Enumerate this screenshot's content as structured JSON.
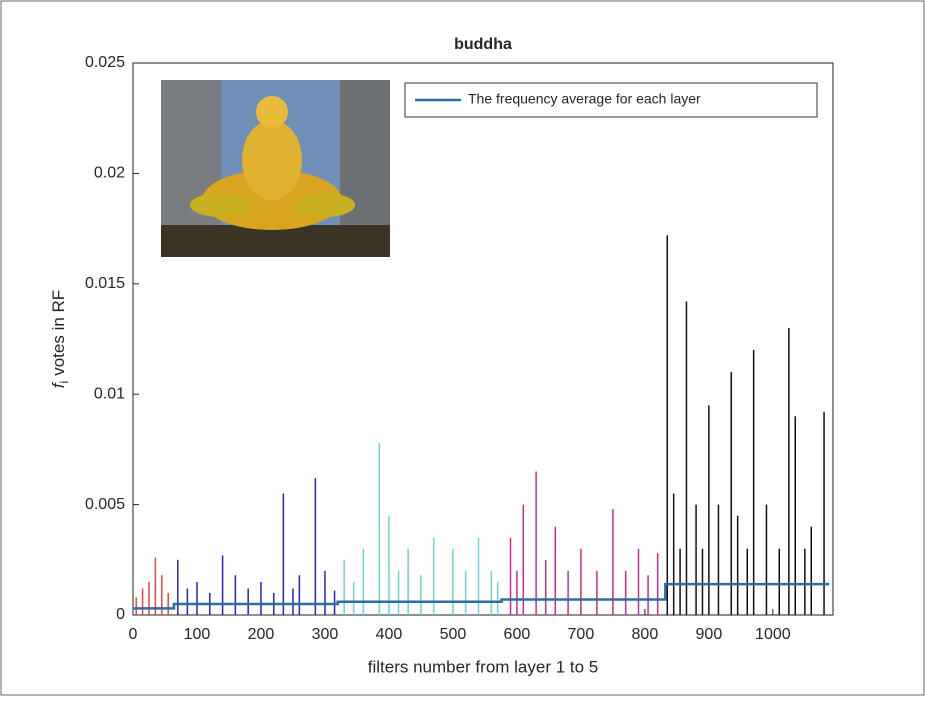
{
  "chart_data": {
    "type": "stem",
    "title": "buddha",
    "xlabel": "filters number from layer 1 to 5",
    "ylabel": {
      "symbol": "f",
      "subscript": "i",
      "text": "votes in RF"
    },
    "xlim": [
      0,
      1094
    ],
    "ylim": [
      0,
      0.025
    ],
    "xticks": [
      0,
      100,
      200,
      300,
      400,
      500,
      600,
      700,
      800,
      900,
      1000
    ],
    "yticks": [
      0,
      0.005,
      0.01,
      0.015,
      0.02,
      0.025
    ],
    "legend": "top-right",
    "series": [
      {
        "style": "stem",
        "color": "#e04848",
        "x": [
          5,
          15,
          25,
          35,
          45,
          55
        ],
        "values": [
          0.0008,
          0.0012,
          0.0015,
          0.0026,
          0.0018,
          0.001
        ]
      },
      {
        "style": "stem",
        "color": "#2424b8",
        "x": [
          70,
          85,
          100,
          120,
          140,
          160,
          180,
          200,
          220,
          235,
          250,
          260,
          285,
          300,
          315
        ],
        "values": [
          0.0025,
          0.0012,
          0.0015,
          0.001,
          0.0027,
          0.0018,
          0.0012,
          0.0015,
          0.001,
          0.0055,
          0.0012,
          0.0018,
          0.0062,
          0.002,
          0.0011
        ]
      },
      {
        "style": "stem",
        "color": "#6cd4d4",
        "x": [
          330,
          345,
          360,
          385,
          400,
          415,
          430,
          450,
          470,
          500,
          520,
          540,
          560,
          570
        ],
        "values": [
          0.0025,
          0.0015,
          0.003,
          0.0078,
          0.0045,
          0.002,
          0.003,
          0.0018,
          0.0035,
          0.003,
          0.002,
          0.0035,
          0.002,
          0.0015
        ]
      },
      {
        "style": "stem",
        "color": "#c03090",
        "x": [
          590,
          600,
          610,
          630,
          645,
          660,
          680,
          700,
          725,
          750,
          770,
          790,
          805,
          820
        ],
        "values": [
          0.0035,
          0.002,
          0.005,
          0.0065,
          0.0025,
          0.004,
          0.002,
          0.003,
          0.002,
          0.0048,
          0.002,
          0.003,
          0.0018,
          0.0028
        ]
      },
      {
        "style": "stem",
        "color": "#111111",
        "x": [
          835,
          845,
          855,
          865,
          880,
          890,
          900,
          915,
          935,
          945,
          960,
          970,
          990,
          1010,
          1025,
          1035,
          1050,
          1060,
          1080
        ],
        "values": [
          0.0172,
          0.0055,
          0.003,
          0.0142,
          0.005,
          0.003,
          0.0095,
          0.005,
          0.011,
          0.0045,
          0.003,
          0.012,
          0.005,
          0.003,
          0.013,
          0.009,
          0.003,
          0.004,
          0.0092
        ]
      },
      {
        "style": "line",
        "name": "The frequency average for each layer",
        "color": "#2e6e9e",
        "x": [
          0,
          64,
          64,
          320,
          320,
          576,
          576,
          832,
          832,
          1088
        ],
        "values": [
          0.0003,
          0.0003,
          0.0005,
          0.0005,
          0.0006,
          0.0006,
          0.0007,
          0.0007,
          0.0014,
          0.0014
        ]
      }
    ]
  }
}
